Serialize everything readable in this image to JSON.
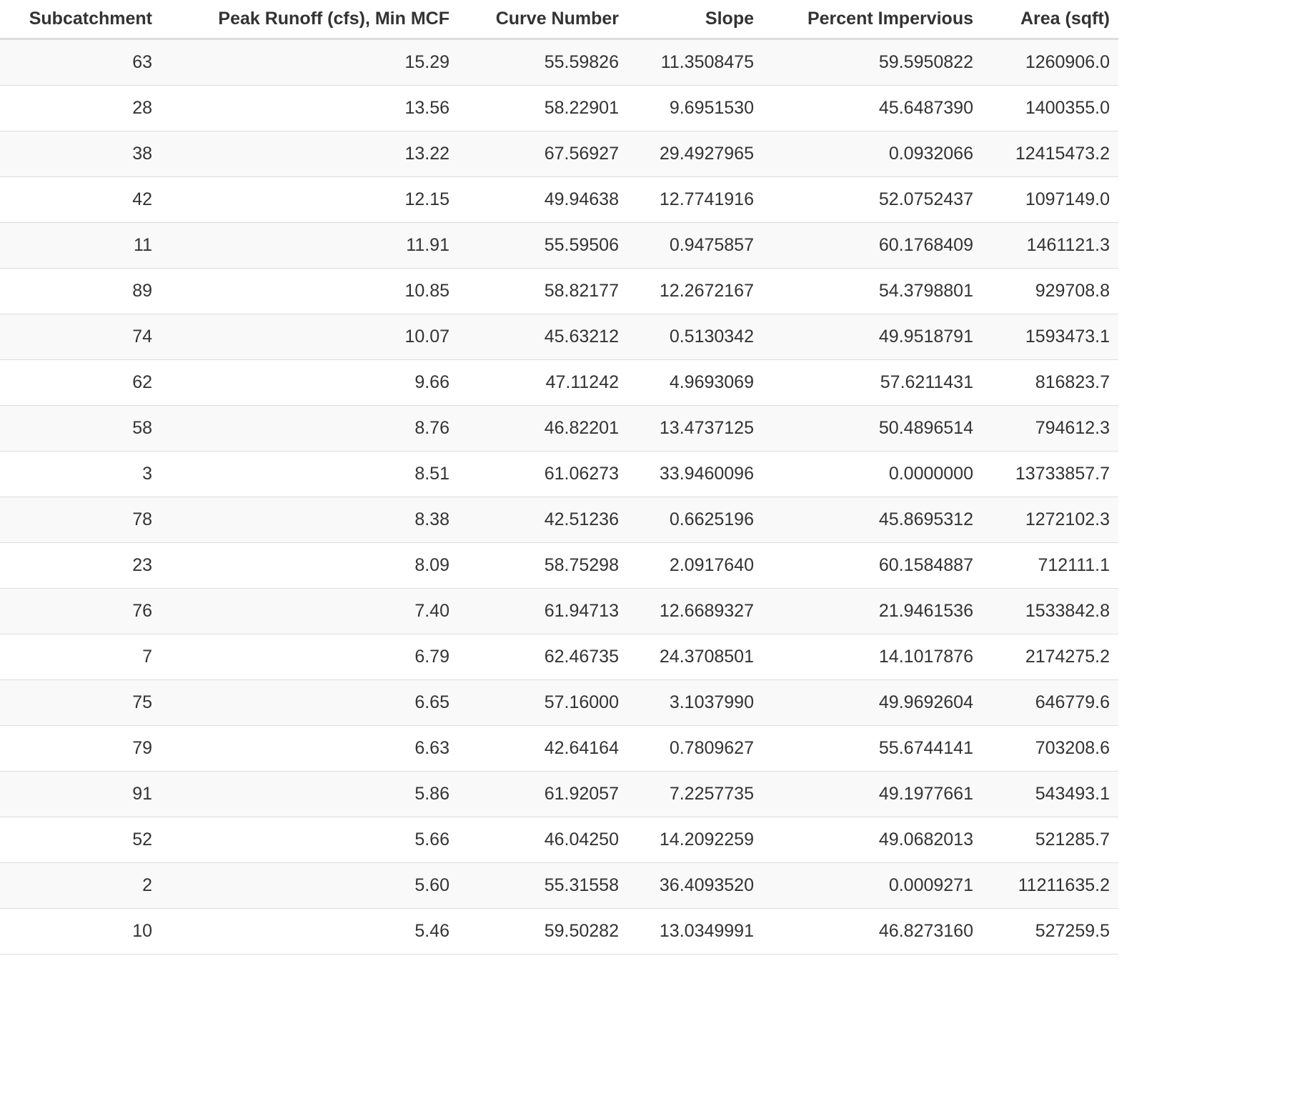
{
  "table": {
    "headers": [
      "Subcatchment",
      "Peak Runoff (cfs), Min MCF",
      "Curve Number",
      "Slope",
      "Percent Impervious",
      "Area (sqft)"
    ],
    "rows": [
      [
        "63",
        "15.29",
        "55.59826",
        "11.3508475",
        "59.5950822",
        "1260906.0"
      ],
      [
        "28",
        "13.56",
        "58.22901",
        "9.6951530",
        "45.6487390",
        "1400355.0"
      ],
      [
        "38",
        "13.22",
        "67.56927",
        "29.4927965",
        "0.0932066",
        "12415473.2"
      ],
      [
        "42",
        "12.15",
        "49.94638",
        "12.7741916",
        "52.0752437",
        "1097149.0"
      ],
      [
        "11",
        "11.91",
        "55.59506",
        "0.9475857",
        "60.1768409",
        "1461121.3"
      ],
      [
        "89",
        "10.85",
        "58.82177",
        "12.2672167",
        "54.3798801",
        "929708.8"
      ],
      [
        "74",
        "10.07",
        "45.63212",
        "0.5130342",
        "49.9518791",
        "1593473.1"
      ],
      [
        "62",
        "9.66",
        "47.11242",
        "4.9693069",
        "57.6211431",
        "816823.7"
      ],
      [
        "58",
        "8.76",
        "46.82201",
        "13.4737125",
        "50.4896514",
        "794612.3"
      ],
      [
        "3",
        "8.51",
        "61.06273",
        "33.9460096",
        "0.0000000",
        "13733857.7"
      ],
      [
        "78",
        "8.38",
        "42.51236",
        "0.6625196",
        "45.8695312",
        "1272102.3"
      ],
      [
        "23",
        "8.09",
        "58.75298",
        "2.0917640",
        "60.1584887",
        "712111.1"
      ],
      [
        "76",
        "7.40",
        "61.94713",
        "12.6689327",
        "21.9461536",
        "1533842.8"
      ],
      [
        "7",
        "6.79",
        "62.46735",
        "24.3708501",
        "14.1017876",
        "2174275.2"
      ],
      [
        "75",
        "6.65",
        "57.16000",
        "3.1037990",
        "49.9692604",
        "646779.6"
      ],
      [
        "79",
        "6.63",
        "42.64164",
        "0.7809627",
        "55.6744141",
        "703208.6"
      ],
      [
        "91",
        "5.86",
        "61.92057",
        "7.2257735",
        "49.1977661",
        "543493.1"
      ],
      [
        "52",
        "5.66",
        "46.04250",
        "14.2092259",
        "49.0682013",
        "521285.7"
      ],
      [
        "2",
        "5.60",
        "55.31558",
        "36.4093520",
        "0.0009271",
        "11211635.2"
      ],
      [
        "10",
        "5.46",
        "59.50282",
        "13.0349991",
        "46.8273160",
        "527259.5"
      ]
    ]
  }
}
